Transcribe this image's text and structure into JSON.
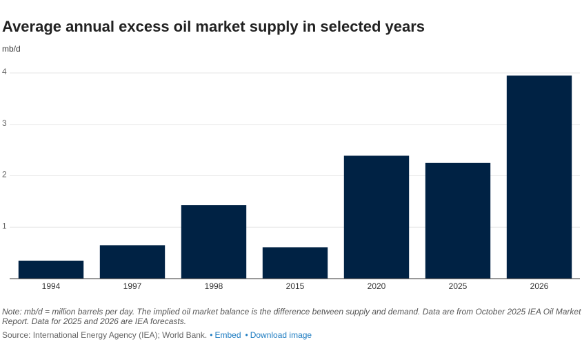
{
  "chart_data": {
    "type": "bar",
    "title": "Average annual excess oil market supply in selected years",
    "y_label": "mb/d",
    "categories": [
      "1994",
      "1997",
      "1998",
      "2015",
      "2020",
      "2025",
      "2026"
    ],
    "values": [
      0.35,
      0.65,
      1.43,
      0.61,
      2.39,
      2.25,
      3.95
    ],
    "color": "#002244",
    "ylim": [
      0,
      4
    ],
    "yticks": [
      1,
      2,
      3,
      4
    ],
    "grid": true,
    "note": [
      "Note: mb/d = million barrels per day. The implied oil market balance is the difference between supply and demand. Data are from October 2025 IEA Oil Market",
      "Report. Data for 2025 and 2026 are IEA forecasts."
    ],
    "source": "Source: International Energy Agency (IEA); World Bank.",
    "links": [
      "Embed",
      "Download image"
    ]
  }
}
